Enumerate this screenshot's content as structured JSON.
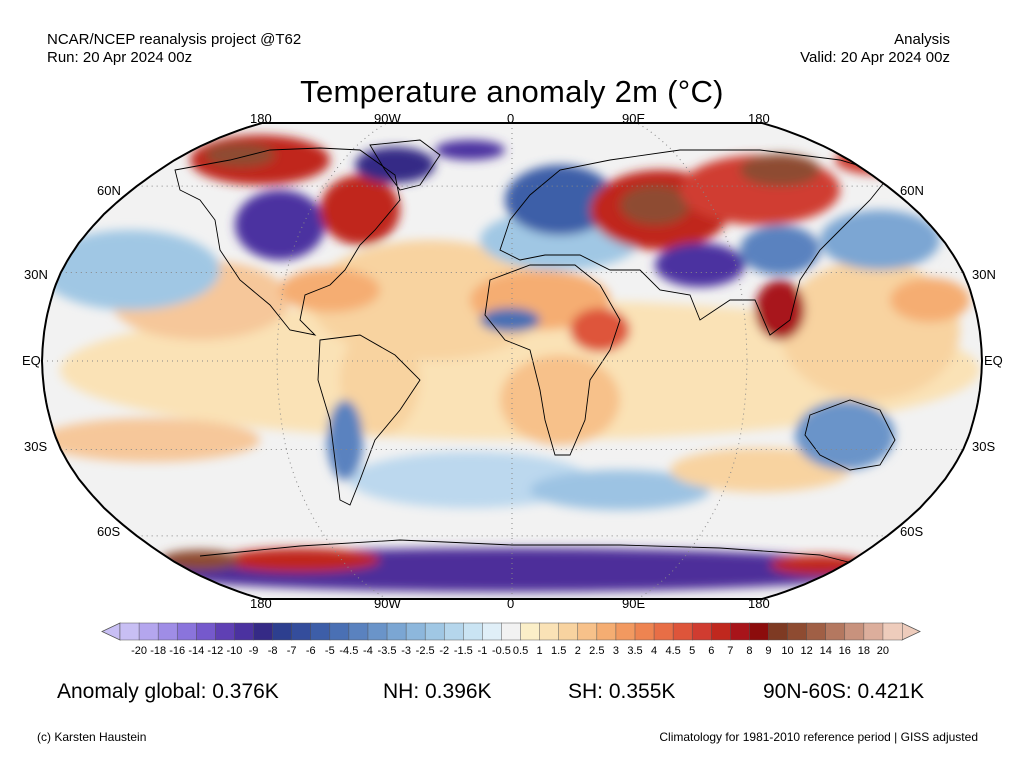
{
  "header": {
    "left_line1": "NCAR/NCEP reanalysis project @T62",
    "left_line2": "Run: 20 Apr 2024 00z",
    "right_line1": "Analysis",
    "right_line2": "Valid: 20 Apr 2024 00z"
  },
  "title": "Temperature anomaly 2m (°C)",
  "map": {
    "projection": "Robinson",
    "graticule": "dotted",
    "longitude_labels": [
      "180",
      "90W",
      "0",
      "90E",
      "180"
    ],
    "latitude_labels": [
      "60N",
      "30N",
      "EQ",
      "30S",
      "60S"
    ],
    "ocean_neutral_color": "#f2f2f2",
    "anomaly_regions": [
      {
        "region": "Alaska / NW Canada",
        "anomaly": "warm",
        "color": "#8b2e1a"
      },
      {
        "region": "central/western Canada & US north",
        "anomaly": "cold",
        "color": "#4b32a0"
      },
      {
        "region": "eastern US / Canada east",
        "anomaly": "warm",
        "color": "#c8241c"
      },
      {
        "region": "Greenland",
        "anomaly": "cold",
        "color": "#3a2c9c"
      },
      {
        "region": "Scandinavia / northern Europe",
        "anomaly": "cold",
        "color": "#3a60a8"
      },
      {
        "region": "western Siberia / Ural",
        "anomaly": "warm",
        "color": "#8b2e1a"
      },
      {
        "region": "eastern Siberia",
        "anomaly": "warm",
        "color": "#c0281e"
      },
      {
        "region": "Tibet / Himalaya",
        "anomaly": "cold",
        "color": "#4f3aa8"
      },
      {
        "region": "Indochina",
        "anomaly": "warm",
        "color": "#9e1616"
      },
      {
        "region": "Australia",
        "anomaly": "cold",
        "color": "#5a8cc6"
      },
      {
        "region": "Southern Ocean / Antarctica",
        "anomaly": "mixed",
        "color": "#4d2e9a"
      },
      {
        "region": "tropical oceans",
        "anomaly": "slightly warm",
        "color": "#f6d3a4"
      }
    ]
  },
  "colorbar": {
    "tick_labels": [
      "-20",
      "-18",
      "-16",
      "-14",
      "-12",
      "-10",
      "-9",
      "-8",
      "-7",
      "-6",
      "-5",
      "-4.5",
      "-4",
      "-3.5",
      "-3",
      "-2.5",
      "-2",
      "-1.5",
      "-1",
      "-0.5",
      "0.5",
      "1",
      "1.5",
      "2",
      "2.5",
      "3",
      "3.5",
      "4",
      "4.5",
      "5",
      "6",
      "7",
      "8",
      "9",
      "10",
      "12",
      "14",
      "16",
      "18",
      "20"
    ],
    "colors": [
      "#c8bff4",
      "#b4a6ee",
      "#9f8de6",
      "#8a74dc",
      "#7559cc",
      "#5f40b4",
      "#4b32a0",
      "#352a86",
      "#2d3f8f",
      "#344d9c",
      "#3d5ea8",
      "#4a70b4",
      "#5a82bf",
      "#6a94c9",
      "#7ba6d3",
      "#8db7dc",
      "#a0c7e4",
      "#b5d6ec",
      "#cae4f3",
      "#e0eff8",
      "#f2f2f2",
      "#fbefc8",
      "#fae2b6",
      "#f8d3a0",
      "#f7c18a",
      "#f5ad72",
      "#f29960",
      "#ee8451",
      "#e86e46",
      "#de553a",
      "#d03c30",
      "#c0281e",
      "#a8141a",
      "#8c0c0c",
      "#7e3a23",
      "#8e4b31",
      "#a05f45",
      "#b47860",
      "#c8927d",
      "#dcae9c",
      "#eeccbc"
    ],
    "extend": "both"
  },
  "stats": {
    "global": "Anomaly global: 0.376K",
    "nh": "NH: 0.396K",
    "sh": "SH: 0.355K",
    "arctic": "90N-60S: 0.421K"
  },
  "footer": {
    "left": "(c) Karsten Haustein",
    "right": "Climatology for 1981-2010 reference period | GISS adjusted"
  }
}
